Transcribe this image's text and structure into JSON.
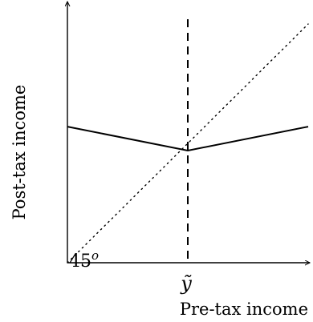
{
  "chart_data": {
    "type": "line",
    "title": "",
    "xlabel": "Pre-tax income",
    "ylabel": "Post-tax income",
    "xlim": [
      0,
      1
    ],
    "ylim": [
      0,
      1
    ],
    "grid": false,
    "legend": "none",
    "annotations": {
      "threshold_label": "ỹ",
      "angle_label": "45",
      "angle_superscript": "o"
    },
    "threshold": {
      "x": 0.5
    },
    "series": [
      {
        "style": "solid",
        "x": [
          0,
          0.5,
          1
        ],
        "y": [
          0.57,
          0.47,
          0.57
        ]
      },
      {
        "style": "dotted",
        "x": [
          0,
          1
        ],
        "y": [
          0,
          1
        ]
      }
    ],
    "colors": {
      "axis": "#000000",
      "line": "#000000"
    }
  }
}
